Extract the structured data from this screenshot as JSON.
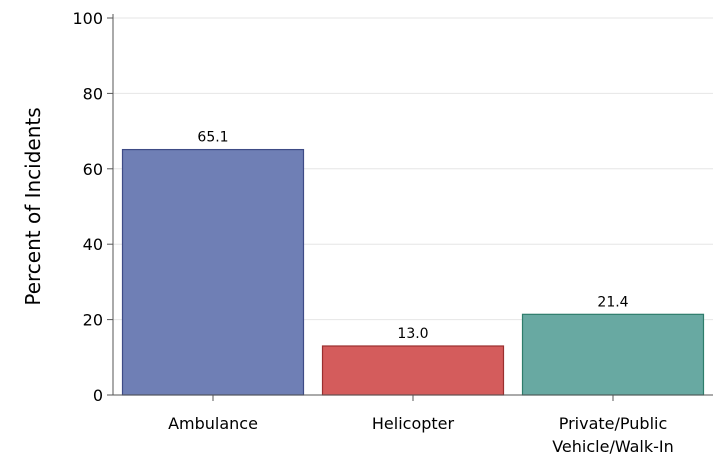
{
  "chart_data": {
    "type": "bar",
    "title": "",
    "xlabel": "",
    "ylabel": "Percent of Incidents",
    "ylim": [
      0,
      100
    ],
    "yticks": [
      0,
      20,
      40,
      60,
      80,
      100
    ],
    "grid": "horizontal",
    "categories": [
      [
        "Ambulance"
      ],
      [
        "Helicopter"
      ],
      [
        "Private/Public",
        "Vehicle/Walk-In"
      ]
    ],
    "values": [
      65.1,
      13.0,
      21.4
    ],
    "value_labels": [
      "65.1",
      "13.0",
      "21.4"
    ],
    "colors": [
      "#6f7fb5",
      "#d45c5c",
      "#68a9a2"
    ],
    "edge_colors": [
      "#3e4b86",
      "#9a2f2f",
      "#2e7d6b"
    ]
  }
}
